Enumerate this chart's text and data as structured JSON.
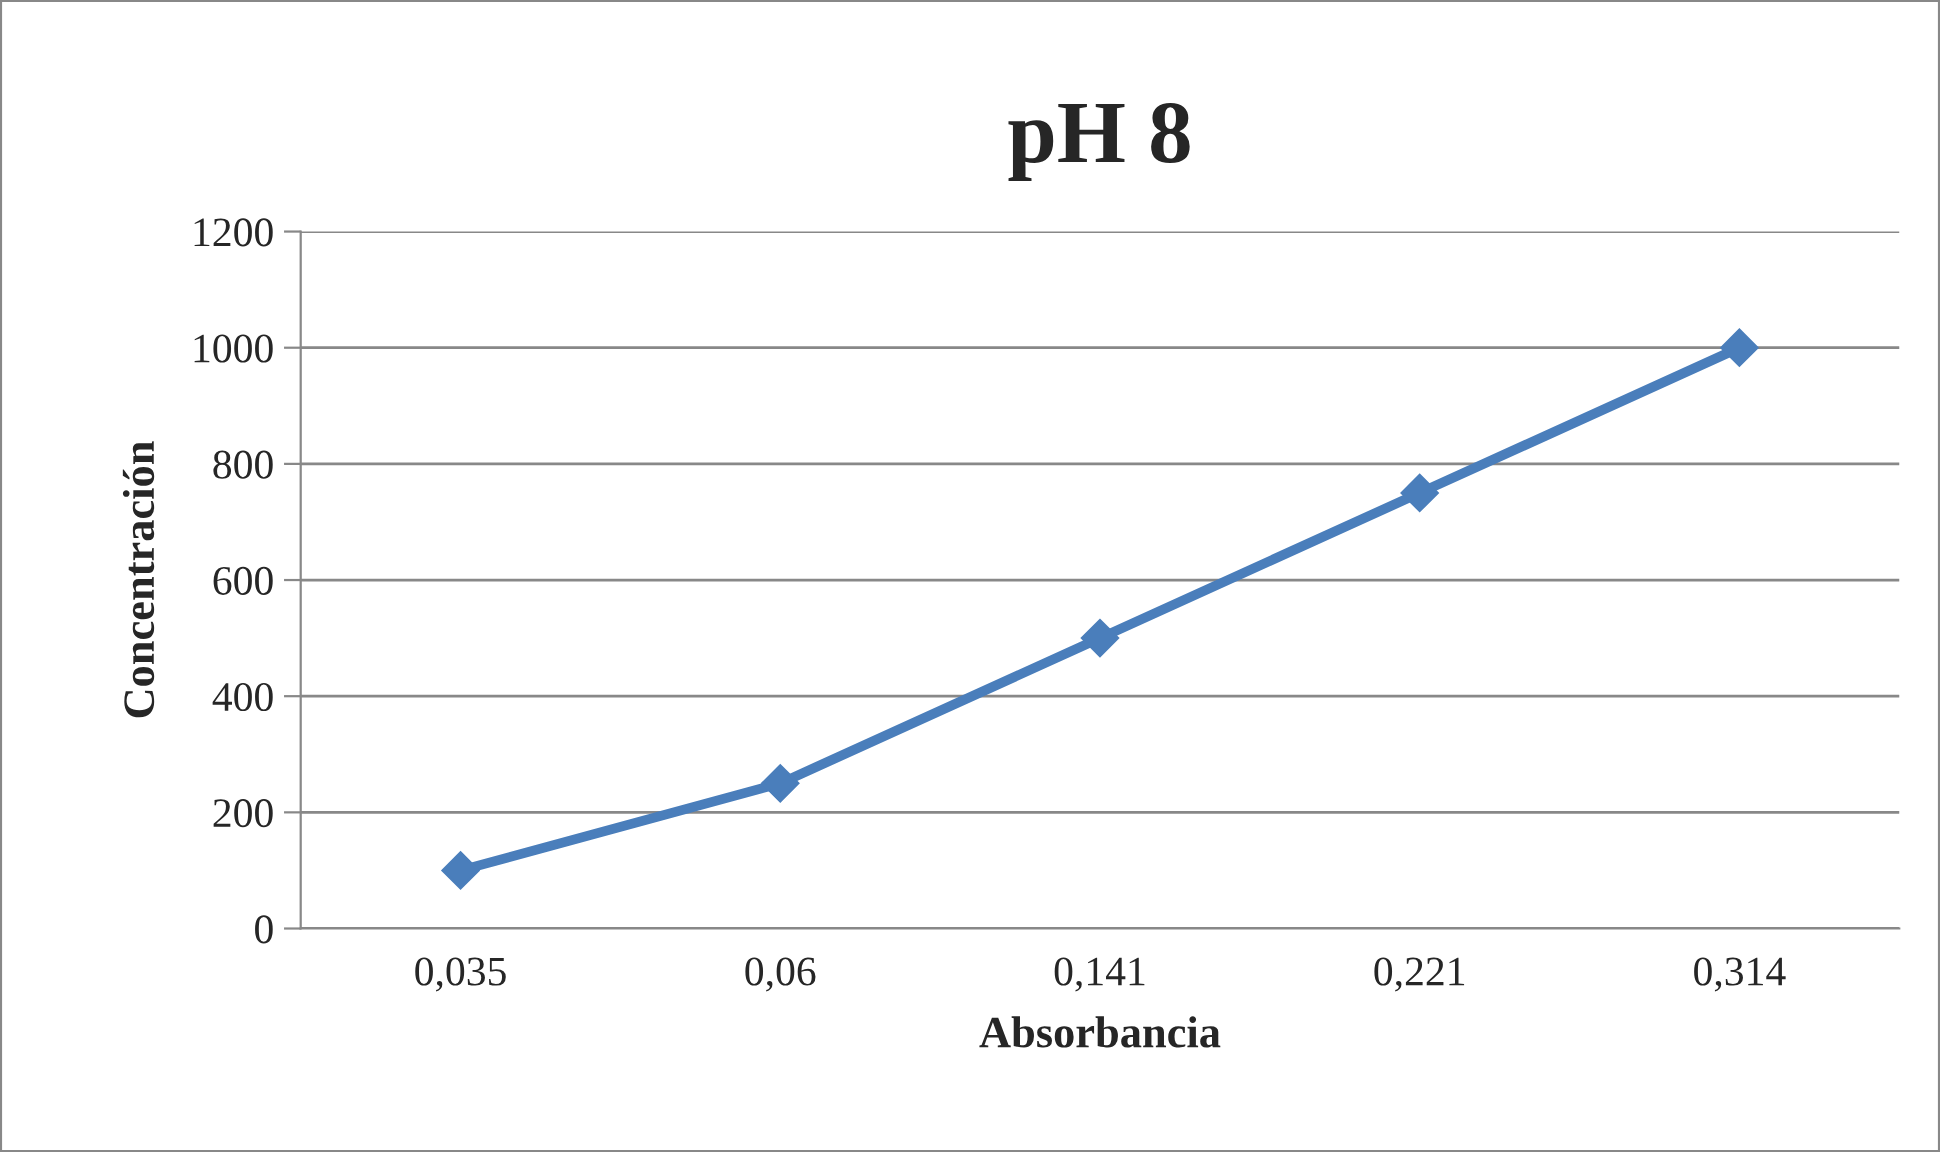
{
  "chart_data": {
    "type": "line",
    "title": "pH 8",
    "xlabel": "Absorbancia",
    "ylabel": "Concentración",
    "categories": [
      "0,035",
      "0,06",
      "0,141",
      "0,221",
      "0,314"
    ],
    "series": [
      {
        "color": "#4a7ebb",
        "values": [
          100,
          250,
          500,
          750,
          1000
        ]
      }
    ],
    "ylim": [
      0,
      1200
    ],
    "yticks": [
      0,
      200,
      400,
      600,
      800,
      1000,
      1200
    ],
    "grid": "y",
    "legend": false,
    "marker": "diamond",
    "line_style": "solid"
  }
}
